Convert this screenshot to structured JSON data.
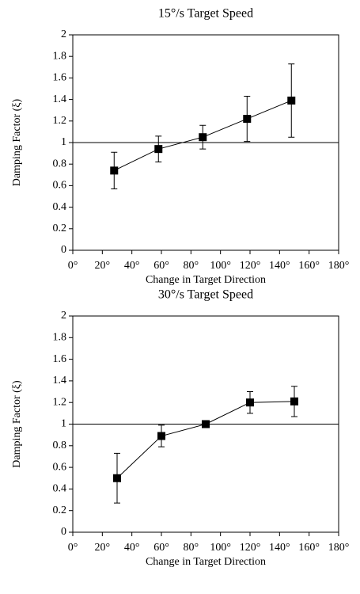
{
  "chart_data": [
    {
      "type": "line",
      "title": "15°/s Target Speed",
      "x_label": "Change in Target Direction",
      "y_label": "Damping Factor (ξ)",
      "x": [
        28,
        58,
        88,
        118,
        148
      ],
      "series": [
        {
          "color": "#000000",
          "values": [
            0.74,
            0.94,
            1.05,
            1.22,
            1.39
          ],
          "errors": [
            0.17,
            0.12,
            0.11,
            0.21,
            0.34
          ]
        }
      ],
      "reference_line": 1,
      "xlim": [
        0,
        180
      ],
      "xticks": [
        {
          "value": 0,
          "label": "0°"
        },
        {
          "value": 20,
          "label": "20°"
        },
        {
          "value": 40,
          "label": "40°"
        },
        {
          "value": 60,
          "label": "60°"
        },
        {
          "value": 80,
          "label": "80°"
        },
        {
          "value": 100,
          "label": "100°"
        },
        {
          "value": 120,
          "label": "120°"
        },
        {
          "value": 140,
          "label": "140°"
        },
        {
          "value": 160,
          "label": "160°"
        },
        {
          "value": 180,
          "label": "180°"
        }
      ],
      "ylim": [
        0,
        2
      ],
      "yticks": [
        0,
        0.2,
        0.4,
        0.6,
        0.8,
        1,
        1.2,
        1.4,
        1.6,
        1.8,
        2
      ]
    },
    {
      "type": "line",
      "title": "30°/s Target Speed",
      "x_label": "Change in Target Direction",
      "y_label": "Damping Factor (ξ)",
      "x": [
        30,
        60,
        90,
        120,
        150
      ],
      "series": [
        {
          "color": "#000000",
          "values": [
            0.5,
            0.89,
            1.0,
            1.2,
            1.21
          ],
          "errors": [
            0.23,
            0.1,
            0.02,
            0.1,
            0.14
          ]
        }
      ],
      "reference_line": 1,
      "xlim": [
        0,
        180
      ],
      "xticks": [
        {
          "value": 0,
          "label": "0°"
        },
        {
          "value": 20,
          "label": "20°"
        },
        {
          "value": 40,
          "label": "40°"
        },
        {
          "value": 60,
          "label": "60°"
        },
        {
          "value": 80,
          "label": "80°"
        },
        {
          "value": 100,
          "label": "100°"
        },
        {
          "value": 120,
          "label": "120°"
        },
        {
          "value": 140,
          "label": "140°"
        },
        {
          "value": 160,
          "label": "160°"
        },
        {
          "value": 180,
          "label": "180°"
        }
      ],
      "ylim": [
        0,
        2
      ],
      "yticks": [
        0,
        0.2,
        0.4,
        0.6,
        0.8,
        1,
        1.2,
        1.4,
        1.6,
        1.8,
        2
      ]
    }
  ]
}
